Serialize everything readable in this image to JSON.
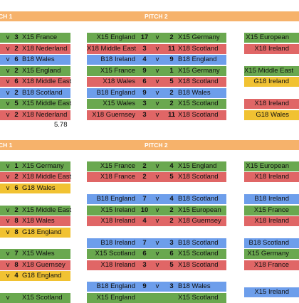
{
  "colors": {
    "banner": "#f6b26b",
    "green": "#6aa84f",
    "red": "#e06666",
    "blue": "#6d9eeb",
    "yellow": "#f1c232"
  },
  "banners": [
    {
      "left_label": "CH 1",
      "center_label": "PITCH 2"
    },
    {
      "left_label": "CH 1",
      "center_label": "PITCH 2"
    }
  ],
  "note": "5.78",
  "fixtures": [
    {
      "left": "",
      "ls": "",
      "v": "v",
      "rs": "3",
      "right": "X15 France",
      "color": "green"
    },
    {
      "left": "",
      "ls": "",
      "v": "v",
      "rs": "2",
      "right": "X18 Nederland",
      "color": "red"
    },
    {
      "left": "",
      "ls": "",
      "v": "v",
      "rs": "6",
      "right": "B18 Wales",
      "color": "blue"
    },
    {
      "left": "",
      "ls": "",
      "v": "v",
      "rs": "2",
      "right": "X15 England",
      "color": "green"
    },
    {
      "left": "",
      "ls": "",
      "v": "v",
      "rs": "6",
      "right": "X18 Middle East",
      "color": "red"
    },
    {
      "left": "",
      "ls": "",
      "v": "v",
      "rs": "2",
      "right": "B18 Scotland",
      "color": "blue"
    },
    {
      "left": "",
      "ls": "",
      "v": "v",
      "rs": "5",
      "right": "X15 Middle East",
      "color": "green"
    },
    {
      "left": "",
      "ls": "",
      "v": "v",
      "rs": "2",
      "right": "X18 Nederland",
      "color": "red"
    },
    {
      "left": "X15 England",
      "ls": "17",
      "v": "v",
      "rs": "2",
      "right": "X15 Germany",
      "color": "green"
    },
    {
      "left": "X18 Middle East",
      "ls": "3",
      "v": "v",
      "rs": "11",
      "right": "X18 Scotland",
      "color": "red"
    },
    {
      "left": "B18 Ireland",
      "ls": "4",
      "v": "v",
      "rs": "9",
      "right": "B18 England",
      "color": "blue"
    },
    {
      "left": "X15 France",
      "ls": "9",
      "v": "v",
      "rs": "1",
      "right": "X15 Germany",
      "color": "green"
    },
    {
      "left": "X18 Wales",
      "ls": "6",
      "v": "v",
      "rs": "5",
      "right": "X18 Scotland",
      "color": "red"
    },
    {
      "left": "B18 England",
      "ls": "9",
      "v": "v",
      "rs": "2",
      "right": "B18 Wales",
      "color": "blue"
    },
    {
      "left": "X15 Wales",
      "ls": "3",
      "v": "v",
      "rs": "2",
      "right": "X15 Scotland",
      "color": "green"
    },
    {
      "left": "X18 Guernsey",
      "ls": "3",
      "v": "v",
      "rs": "11",
      "right": "X18 Scotland",
      "color": "red"
    },
    {
      "left": "X15 European",
      "ls": "",
      "v": "",
      "rs": "",
      "right": "",
      "color": "green"
    },
    {
      "left": "X18 Ireland",
      "ls": "",
      "v": "",
      "rs": "",
      "right": "",
      "color": "red"
    },
    {
      "left": "X15 Middle East",
      "ls": "",
      "v": "",
      "rs": "",
      "right": "",
      "color": "green"
    },
    {
      "left": "G18 Ireland",
      "ls": "",
      "v": "",
      "rs": "",
      "right": "",
      "color": "yellow"
    },
    {
      "left": "X18 Ireland",
      "ls": "",
      "v": "",
      "rs": "",
      "right": "",
      "color": "red"
    },
    {
      "left": "G18 Wales",
      "ls": "",
      "v": "",
      "rs": "",
      "right": "",
      "color": "yellow"
    },
    {
      "left": "",
      "ls": "",
      "v": "v",
      "rs": "1",
      "right": "X15 Germany",
      "color": "green"
    },
    {
      "left": "",
      "ls": "",
      "v": "v",
      "rs": "2",
      "right": "X18 Middle East",
      "color": "red"
    },
    {
      "left": "",
      "ls": "",
      "v": "v",
      "rs": "6",
      "right": "G18 Wales",
      "color": "yellow"
    },
    {
      "left": "",
      "ls": "",
      "v": "v",
      "rs": "2",
      "right": "X15 Middle East",
      "color": "green"
    },
    {
      "left": "",
      "ls": "",
      "v": "v",
      "rs": "8",
      "right": "X18 Wales",
      "color": "red"
    },
    {
      "left": "",
      "ls": "",
      "v": "v",
      "rs": "8",
      "right": "G18 England",
      "color": "yellow"
    },
    {
      "left": "",
      "ls": "",
      "v": "v",
      "rs": "7",
      "right": "X15 Wales",
      "color": "green"
    },
    {
      "left": "",
      "ls": "",
      "v": "v",
      "rs": "8",
      "right": "X18 Guernsey",
      "color": "red"
    },
    {
      "left": "",
      "ls": "",
      "v": "v",
      "rs": "4",
      "right": "G18 England",
      "color": "yellow"
    },
    {
      "left": "",
      "ls": "",
      "v": "v",
      "rs": "",
      "right": "X15 Scotland",
      "color": "green"
    },
    {
      "left": "X15 France",
      "ls": "2",
      "v": "v",
      "rs": "4",
      "right": "X15 England",
      "color": "green"
    },
    {
      "left": "X18 France",
      "ls": "2",
      "v": "v",
      "rs": "5",
      "right": "X18 Scotland",
      "color": "red"
    },
    {
      "left": "B18 England",
      "ls": "7",
      "v": "v",
      "rs": "4",
      "right": "B18 Scotland",
      "color": "blue"
    },
    {
      "left": "X15 Ireland",
      "ls": "10",
      "v": "v",
      "rs": "2",
      "right": "X15 European",
      "color": "green"
    },
    {
      "left": "X18 Ireland",
      "ls": "4",
      "v": "v",
      "rs": "2",
      "right": "X18 Guernsey",
      "color": "red"
    },
    {
      "left": "B18 Ireland",
      "ls": "7",
      "v": "v",
      "rs": "3",
      "right": "B18 Scotland",
      "color": "blue"
    },
    {
      "left": "X15 Scotland",
      "ls": "6",
      "v": "v",
      "rs": "6",
      "right": "X15 Scotland",
      "color": "green"
    },
    {
      "left": "X18 Ireland",
      "ls": "3",
      "v": "v",
      "rs": "5",
      "right": "X18 Scotland",
      "color": "red"
    },
    {
      "left": "B18 England",
      "ls": "9",
      "v": "v",
      "rs": "3",
      "right": "B18 Wales",
      "color": "blue"
    },
    {
      "left": "X15 England",
      "ls": "",
      "v": "",
      "rs": "",
      "right": "X15 Scotland",
      "color": "green"
    },
    {
      "left": "X15 European",
      "ls": "",
      "v": "",
      "rs": "",
      "right": "",
      "color": "green"
    },
    {
      "left": "X18 Ireland",
      "ls": "",
      "v": "",
      "rs": "",
      "right": "",
      "color": "red"
    },
    {
      "left": "B18 Ireland",
      "ls": "",
      "v": "",
      "rs": "",
      "right": "",
      "color": "blue"
    },
    {
      "left": "X15 France",
      "ls": "",
      "v": "",
      "rs": "",
      "right": "",
      "color": "green"
    },
    {
      "left": "X18 Ireland",
      "ls": "",
      "v": "",
      "rs": "",
      "right": "",
      "color": "red"
    },
    {
      "left": "B18 Scotland",
      "ls": "",
      "v": "",
      "rs": "",
      "right": "",
      "color": "blue"
    },
    {
      "left": "X15 Germany",
      "ls": "",
      "v": "",
      "rs": "",
      "right": "",
      "color": "green"
    },
    {
      "left": "X18 France",
      "ls": "",
      "v": "",
      "rs": "",
      "right": "",
      "color": "red"
    },
    {
      "left": "X15 Ireland",
      "ls": "",
      "v": "",
      "rs": "",
      "right": "",
      "color": "blue"
    }
  ]
}
